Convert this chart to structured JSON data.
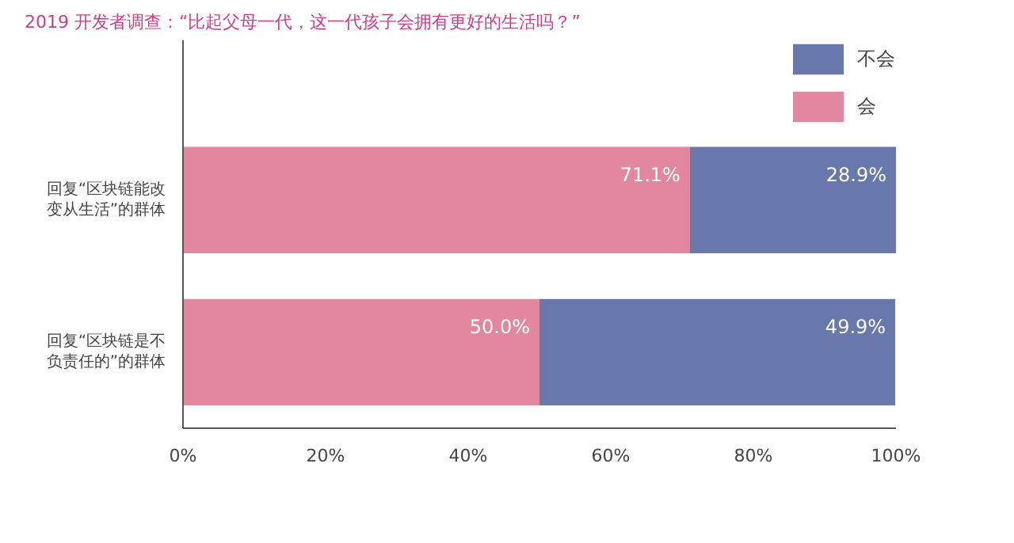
{
  "chart_data": {
    "type": "bar",
    "orientation": "horizontal",
    "stacked": true,
    "title": "2019 开发者调查：“比起父母一代，这一代孩子会拥有更好的生活吗？”",
    "categories": [
      "回复“区块链能改变从生活”的群体",
      "回复“区块链是不负责任的”的群体"
    ],
    "series": [
      {
        "name": "会",
        "color": "#e2879f",
        "values": [
          71.1,
          50.0
        ],
        "value_labels": [
          "71.1%",
          "50.0%"
        ]
      },
      {
        "name": "不会",
        "color": "#6878ac",
        "values": [
          28.9,
          49.9
        ],
        "value_labels": [
          "28.9%",
          "49.9%"
        ]
      }
    ],
    "xlim": [
      0,
      100
    ],
    "xticks": [
      {
        "value": 0,
        "label": "0%"
      },
      {
        "value": 20,
        "label": "20%"
      },
      {
        "value": 40,
        "label": "40%"
      },
      {
        "value": 60,
        "label": "60%"
      },
      {
        "value": 80,
        "label": "80%"
      },
      {
        "value": 100,
        "label": "100%"
      }
    ],
    "grid": false,
    "legend": "top right"
  }
}
